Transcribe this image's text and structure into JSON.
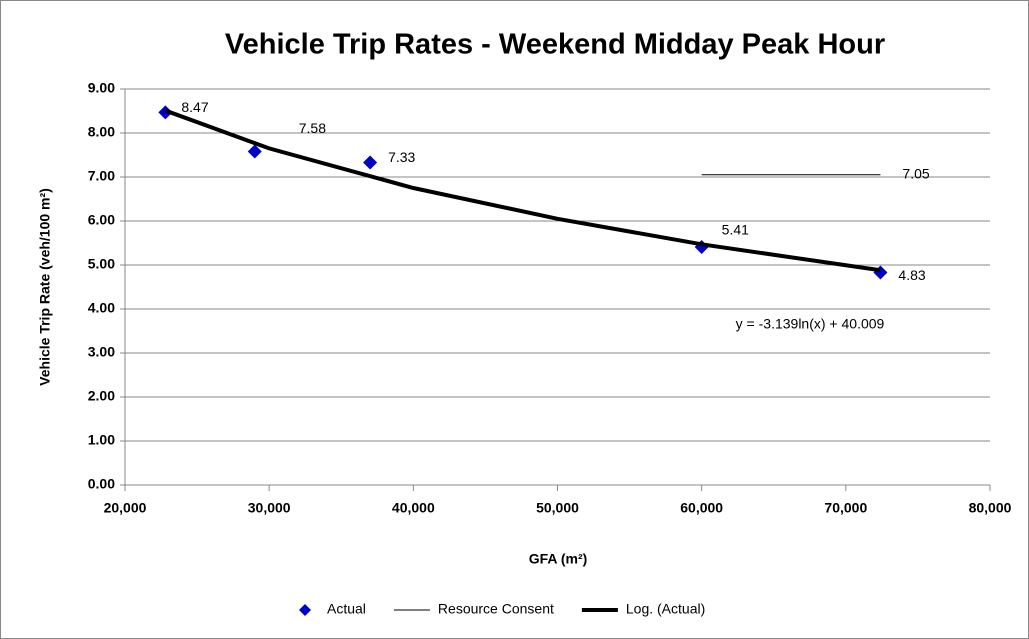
{
  "chart_data": {
    "type": "scatter",
    "title": "Vehicle Trip Rates - Weekend Midday Peak Hour",
    "x_label": "GFA (m²)",
    "y_label": "Vehicle Trip Rate  (veh/100 m²)",
    "annotation": "y = -3.139ln(x) + 40.009",
    "xlim": [
      20000,
      80000
    ],
    "xticks": [
      {
        "value": 20000,
        "label": "20,000"
      },
      {
        "value": 30000,
        "label": "30,000"
      },
      {
        "value": 40000,
        "label": "40,000"
      },
      {
        "value": 50000,
        "label": "50,000"
      },
      {
        "value": 60000,
        "label": "60,000"
      },
      {
        "value": 70000,
        "label": "70,000"
      },
      {
        "value": 80000,
        "label": "80,000"
      }
    ],
    "ylim": [
      0,
      9
    ],
    "yticks": [
      {
        "value": 0,
        "label": "0.00"
      },
      {
        "value": 1,
        "label": "1.00"
      },
      {
        "value": 2,
        "label": "2.00"
      },
      {
        "value": 3,
        "label": "3.00"
      },
      {
        "value": 4,
        "label": "4.00"
      },
      {
        "value": 5,
        "label": "5.00"
      },
      {
        "value": 6,
        "label": "6.00"
      },
      {
        "value": 7,
        "label": "7.00"
      },
      {
        "value": 8,
        "label": "8.00"
      },
      {
        "value": 9,
        "label": "9.00"
      }
    ],
    "grid": true,
    "legend": "bottom",
    "series": [
      {
        "name": "Actual",
        "color": "#0000cc",
        "marker": "diamond",
        "x": [
          22800,
          29000,
          37000,
          60000,
          72400
        ],
        "values": [
          8.47,
          7.58,
          7.33,
          5.41,
          4.83
        ]
      },
      {
        "name": "Resource Consent",
        "color": "#000000",
        "line_width": 1,
        "x": [
          60000,
          72400
        ],
        "values": [
          7.05,
          7.05
        ],
        "value_labels": [
          null,
          "7.05"
        ]
      },
      {
        "name": "Log. (Actual)",
        "color": "#000000",
        "line_width": 4,
        "x": [
          22800,
          30000,
          40000,
          50000,
          60000,
          72400
        ],
        "values": [
          8.51,
          7.65,
          6.75,
          6.05,
          5.47,
          4.88
        ]
      }
    ]
  }
}
